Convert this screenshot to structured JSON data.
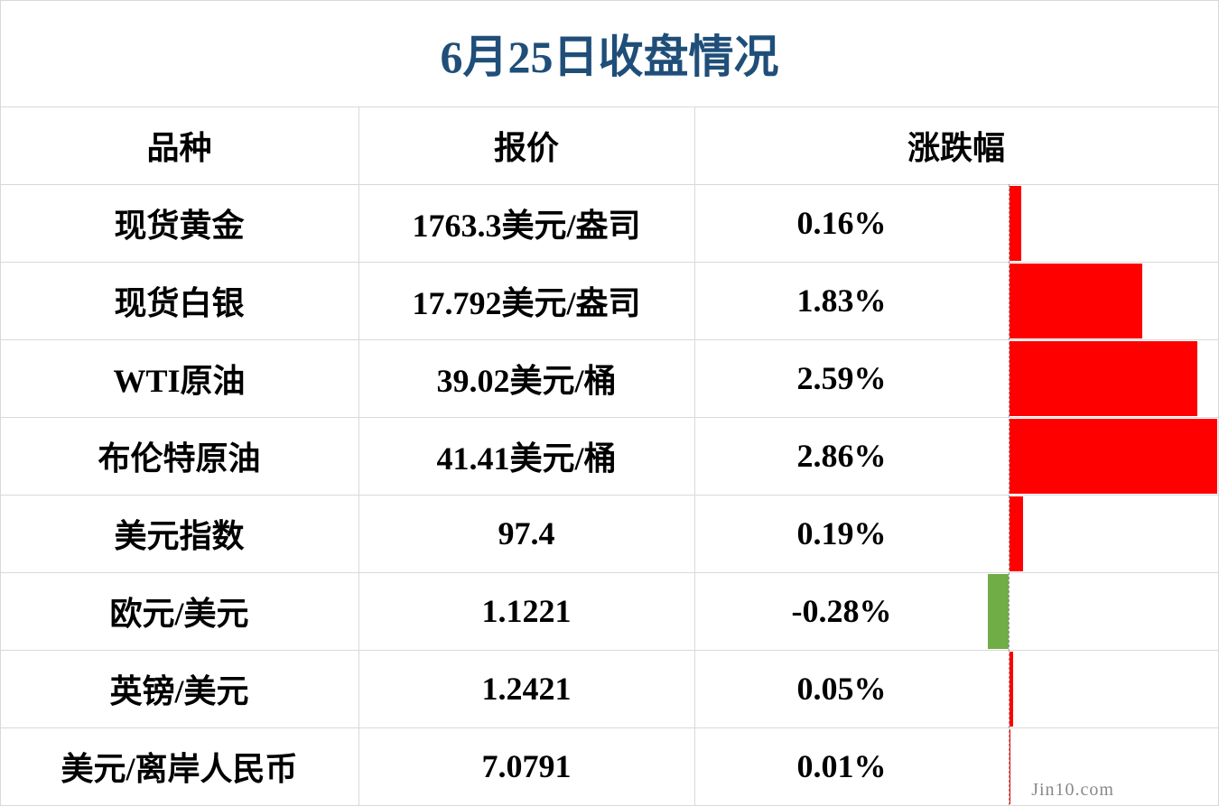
{
  "title": "6月25日收盘情况",
  "header": [
    "品种",
    "报价",
    "涨跌幅"
  ],
  "rows": [
    {
      "name": "现货黄金",
      "price": "1763.3美元/盎司",
      "change": {
        "value": 0.16,
        "label": "0.16%"
      }
    },
    {
      "name": "现货白银",
      "price": "17.792美元/盎司",
      "change": {
        "value": 1.83,
        "label": "1.83%"
      }
    },
    {
      "name": "WTI原油",
      "price": "39.02美元/桶",
      "change": {
        "value": 2.59,
        "label": "2.59%"
      }
    },
    {
      "name": "布伦特原油",
      "price": "41.41美元/桶",
      "change": {
        "value": 2.86,
        "label": "2.86%"
      }
    },
    {
      "name": "美元指数",
      "price": "97.4",
      "change": {
        "value": 0.19,
        "label": "0.19%"
      }
    },
    {
      "name": "欧元/美元",
      "price": "1.1221",
      "change": {
        "value": -0.28,
        "label": "-0.28%"
      }
    },
    {
      "name": "英镑/美元",
      "price": "1.2421",
      "change": {
        "value": 0.05,
        "label": "0.05%"
      }
    },
    {
      "name": "美元/离岸人民币",
      "price": "7.0791",
      "change": {
        "value": 0.01,
        "label": "0.01%"
      }
    }
  ],
  "watermark": "Jin10.com"
}
